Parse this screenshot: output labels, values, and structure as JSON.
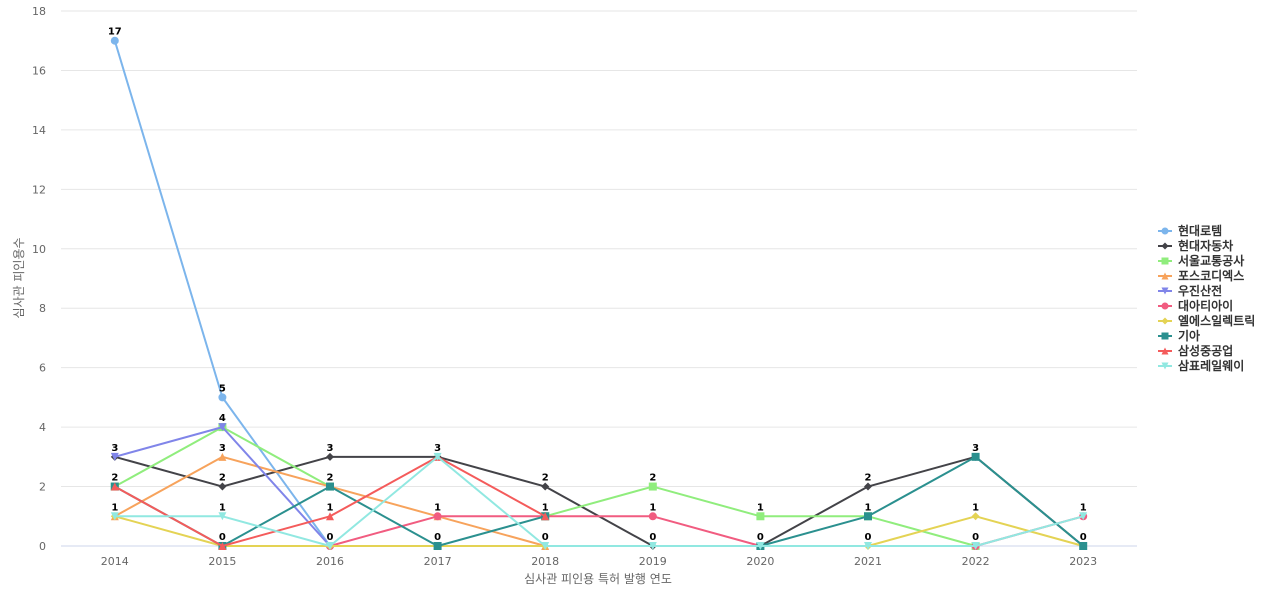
{
  "chart_data": {
    "type": "line",
    "x": [
      "2014",
      "2015",
      "2016",
      "2017",
      "2018",
      "2019",
      "2020",
      "2021",
      "2022",
      "2023"
    ],
    "xlabel": "심사관 피인용 특허 발행 연도",
    "ylabel": "심사관 피인용수",
    "ylim": [
      0,
      18
    ],
    "yticks": [
      0,
      2,
      4,
      6,
      8,
      10,
      12,
      14,
      16,
      18
    ],
    "grid": true,
    "legend_position": "right",
    "series": [
      {
        "name": "현대로템",
        "color": "#7cb5ec",
        "marker": "circle",
        "values": [
          17,
          5,
          0,
          null,
          null,
          null,
          null,
          null,
          null,
          null
        ]
      },
      {
        "name": "현대자동차",
        "color": "#434348",
        "marker": "diamond",
        "values": [
          3,
          2,
          3,
          3,
          2,
          0,
          0,
          2,
          3,
          0
        ]
      },
      {
        "name": "서울교통공사",
        "color": "#90ed7d",
        "marker": "square",
        "values": [
          2,
          4,
          2,
          null,
          1,
          2,
          1,
          1,
          0,
          null
        ]
      },
      {
        "name": "포스코디엑스",
        "color": "#f7a35c",
        "marker": "triangle",
        "values": [
          1,
          3,
          2,
          1,
          0,
          null,
          null,
          null,
          null,
          null
        ]
      },
      {
        "name": "우진산전",
        "color": "#8085e9",
        "marker": "triangle-down",
        "values": [
          3,
          4,
          0,
          null,
          null,
          null,
          null,
          null,
          null,
          null
        ]
      },
      {
        "name": "대아티아이",
        "color": "#f15c80",
        "marker": "circle",
        "values": [
          null,
          null,
          0,
          1,
          1,
          1,
          0,
          null,
          0,
          1
        ]
      },
      {
        "name": "엘에스일렉트릭",
        "color": "#e4d354",
        "marker": "diamond",
        "values": [
          1,
          0,
          0,
          0,
          0,
          null,
          null,
          0,
          1,
          0
        ]
      },
      {
        "name": "기아",
        "color": "#2b908f",
        "marker": "square",
        "values": [
          2,
          0,
          2,
          0,
          1,
          null,
          0,
          1,
          3,
          0
        ]
      },
      {
        "name": "삼성중공업",
        "color": "#f45b5b",
        "marker": "triangle",
        "values": [
          2,
          0,
          1,
          3,
          1,
          null,
          null,
          null,
          null,
          null
        ]
      },
      {
        "name": "삼표레일웨이",
        "color": "#91e8e1",
        "marker": "triangle-down",
        "values": [
          1,
          1,
          0,
          3,
          0,
          0,
          0,
          0,
          0,
          1
        ]
      }
    ],
    "data_labels": [
      {
        "x": "2014",
        "y": 17,
        "text": "17"
      },
      {
        "x": "2014",
        "y": 3,
        "text": "3"
      },
      {
        "x": "2014",
        "y": 2,
        "text": "2"
      },
      {
        "x": "2014",
        "y": 1,
        "text": "1"
      },
      {
        "x": "2015",
        "y": 5,
        "text": "5"
      },
      {
        "x": "2015",
        "y": 4,
        "text": "4"
      },
      {
        "x": "2015",
        "y": 3,
        "text": "3"
      },
      {
        "x": "2015",
        "y": 2,
        "text": "2"
      },
      {
        "x": "2015",
        "y": 1,
        "text": "1"
      },
      {
        "x": "2015",
        "y": 0,
        "text": "0"
      },
      {
        "x": "2016",
        "y": 3,
        "text": "3"
      },
      {
        "x": "2016",
        "y": 2,
        "text": "2"
      },
      {
        "x": "2016",
        "y": 1,
        "text": "1"
      },
      {
        "x": "2016",
        "y": 0,
        "text": "0"
      },
      {
        "x": "2017",
        "y": 3,
        "text": "3"
      },
      {
        "x": "2017",
        "y": 1,
        "text": "1"
      },
      {
        "x": "2017",
        "y": 0,
        "text": "0"
      },
      {
        "x": "2018",
        "y": 2,
        "text": "2"
      },
      {
        "x": "2018",
        "y": 1,
        "text": "1"
      },
      {
        "x": "2018",
        "y": 0,
        "text": "0"
      },
      {
        "x": "2019",
        "y": 2,
        "text": "2"
      },
      {
        "x": "2019",
        "y": 1,
        "text": "1"
      },
      {
        "x": "2019",
        "y": 0,
        "text": "0"
      },
      {
        "x": "2020",
        "y": 1,
        "text": "1"
      },
      {
        "x": "2020",
        "y": 0,
        "text": "0"
      },
      {
        "x": "2021",
        "y": 2,
        "text": "2"
      },
      {
        "x": "2021",
        "y": 1,
        "text": "1"
      },
      {
        "x": "2021",
        "y": 0,
        "text": "0"
      },
      {
        "x": "2022",
        "y": 3,
        "text": "3"
      },
      {
        "x": "2022",
        "y": 1,
        "text": "1"
      },
      {
        "x": "2022",
        "y": 0,
        "text": "0"
      },
      {
        "x": "2023",
        "y": 1,
        "text": "1"
      },
      {
        "x": "2023",
        "y": 0,
        "text": "0"
      }
    ]
  }
}
